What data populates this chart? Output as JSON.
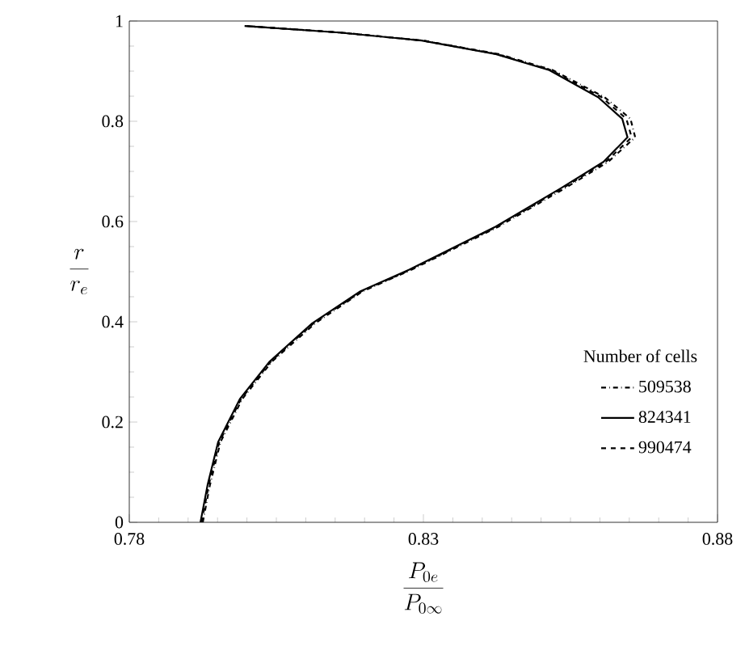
{
  "chart_data": {
    "type": "line",
    "xlabel": "\\frac{P_{0e}}{P_{0\\infty}}",
    "ylabel": "\\frac{r}{r_e}",
    "legend_title": "Number of cells",
    "legend": "bottom right",
    "grid": false,
    "marker": "none",
    "xlim": [
      0.78,
      0.88
    ],
    "xticks": [
      0.78,
      0.83,
      0.88
    ],
    "ylim": [
      0,
      1
    ],
    "yticks": [
      0,
      0.2,
      0.4,
      0.6,
      0.8,
      1
    ],
    "series": [
      {
        "name": "509538",
        "color": "#000000",
        "line_style": "dashdotted",
        "x": [
          0.7925,
          0.7937,
          0.7955,
          0.7992,
          0.8042,
          0.8116,
          0.8197,
          0.828,
          0.8428,
          0.854,
          0.8614,
          0.866,
          0.8652,
          0.8608,
          0.852,
          0.8428,
          0.83,
          0.816,
          0.8
        ],
        "values": [
          0,
          0.074,
          0.16,
          0.246,
          0.32,
          0.397,
          0.461,
          0.504,
          0.59,
          0.666,
          0.719,
          0.768,
          0.805,
          0.848,
          0.902,
          0.934,
          0.961,
          0.977,
          0.99
        ]
      },
      {
        "name": "824341",
        "color": "#000000",
        "line_style": "solid",
        "x": [
          0.7921,
          0.7933,
          0.7951,
          0.7988,
          0.8038,
          0.8111,
          0.8193,
          0.8276,
          0.8423,
          0.8533,
          0.8606,
          0.8647,
          0.8638,
          0.8597,
          0.8514,
          0.8423,
          0.8297,
          0.8157,
          0.7996
        ],
        "values": [
          0,
          0.074,
          0.16,
          0.246,
          0.32,
          0.397,
          0.461,
          0.504,
          0.59,
          0.666,
          0.719,
          0.768,
          0.805,
          0.848,
          0.902,
          0.934,
          0.961,
          0.977,
          0.99
        ]
      },
      {
        "name": "990474",
        "color": "#000000",
        "line_style": "dashed",
        "x": [
          0.7923,
          0.7935,
          0.7953,
          0.799,
          0.804,
          0.8113,
          0.8195,
          0.8278,
          0.8425,
          0.8536,
          0.861,
          0.8654,
          0.8645,
          0.8603,
          0.8517,
          0.8425,
          0.8298,
          0.8158,
          0.7998
        ],
        "values": [
          0,
          0.074,
          0.16,
          0.246,
          0.32,
          0.397,
          0.461,
          0.504,
          0.59,
          0.666,
          0.719,
          0.768,
          0.805,
          0.848,
          0.902,
          0.934,
          0.961,
          0.977,
          0.99
        ]
      }
    ]
  }
}
